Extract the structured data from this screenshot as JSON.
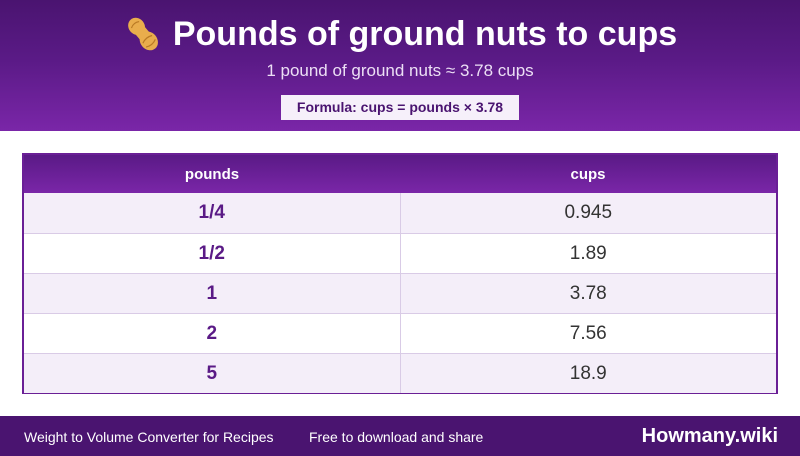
{
  "header": {
    "title": "Pounds of ground nuts to cups",
    "icon": "peanut-icon",
    "subtitle": "1 pound of ground nuts ≈ 3.78 cups",
    "formula": "Formula: cups = pounds × 3.78"
  },
  "table": {
    "columns": [
      "pounds",
      "cups"
    ],
    "rows": [
      [
        "1/4",
        "0.945"
      ],
      [
        "1/2",
        "1.89"
      ],
      [
        "1",
        "3.78"
      ],
      [
        "2",
        "7.56"
      ],
      [
        "5",
        "18.9"
      ]
    ]
  },
  "footer": {
    "left": "Weight to Volume Converter for Recipes",
    "middle": "Free to download and share",
    "brand": "Howmany.wiki"
  },
  "colors": {
    "primary": "#5a1a86",
    "header_dark": "#4a1470",
    "row_alt": "#f4eef9"
  }
}
